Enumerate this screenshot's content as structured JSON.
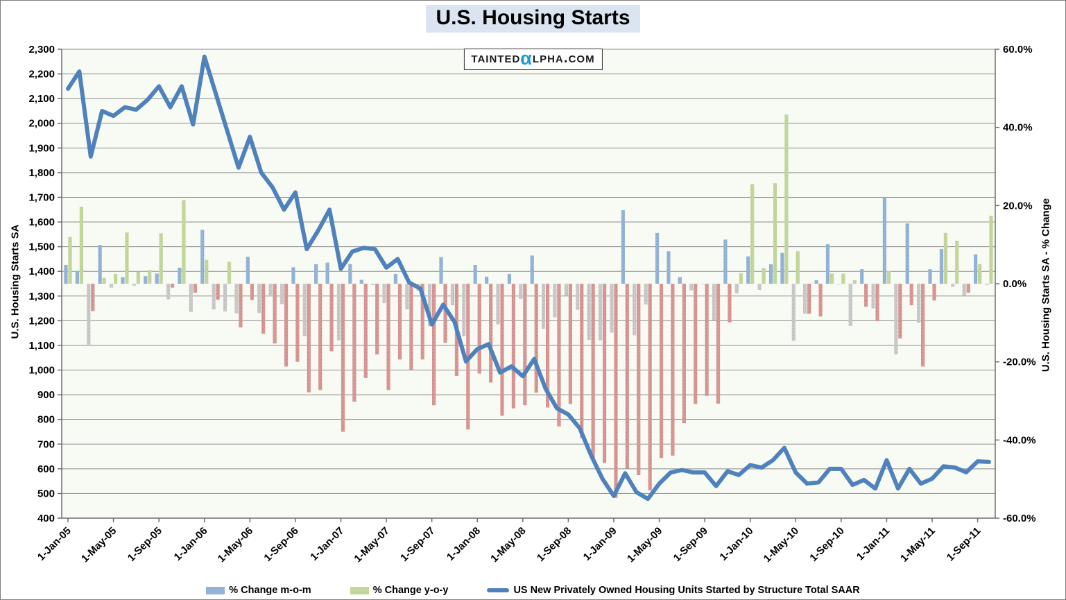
{
  "title": "U.S. Housing Starts",
  "logo": {
    "part1": "Tainted",
    "alpha": "α",
    "part2": "lpha.com"
  },
  "left_axis": {
    "title": "U.S. Housing Starts SA",
    "min": 400,
    "max": 2300,
    "tick_step": 100,
    "ticks": [
      "2,300",
      "2,200",
      "2,100",
      "2,000",
      "1,900",
      "1,800",
      "1,700",
      "1,600",
      "1,500",
      "1,400",
      "1,300",
      "1,200",
      "1,100",
      "1,000",
      "900",
      "800",
      "700",
      "600",
      "500",
      "400"
    ]
  },
  "right_axis": {
    "title": "U.S. Housing Starts SA - % Change",
    "min": -60,
    "max": 60,
    "tick_step": 20,
    "ticks": [
      "60.0%",
      "40.0%",
      "20.0%",
      "0.0%",
      "-20.0%",
      "-40.0%",
      "-60.0%"
    ]
  },
  "x_axis": {
    "tick_labels": [
      "1-Jan-05",
      "1-May-05",
      "1-Sep-05",
      "1-Jan-06",
      "1-May-06",
      "1-Sep-06",
      "1-Jan-07",
      "1-May-07",
      "1-Sep-07",
      "1-Jan-08",
      "1-May-08",
      "1-Sep-08",
      "1-Jan-09",
      "1-May-09",
      "1-Sep-09",
      "1-Jan-10",
      "1-May-10",
      "1-Sep-10",
      "1-Jan-11",
      "1-May-11",
      "1-Sep-11"
    ],
    "tick_every_months": 4
  },
  "legend": [
    {
      "label": "% Change m-o-m",
      "type": "bar",
      "color": "#95B3D7"
    },
    {
      "label": "% Change y-o-y",
      "type": "bar",
      "color": "#C3D69B"
    },
    {
      "label": "US New Privately Owned Housing Units Started by Structure Total SAAR",
      "type": "line",
      "color": "#4F81BD"
    }
  ],
  "colors": {
    "line": "#4F81BD",
    "mom_pos": "#95B3D7",
    "mom_pos_dot": "#7E9FC8",
    "mom_neg": "#C9C9C9",
    "mom_neg_dot": "#B1B1B1",
    "yoy_pos": "#C3D69B",
    "yoy_pos_dot": "#B2C987",
    "yoy_neg": "#D99694",
    "yoy_neg_dot": "#C07E7C",
    "grid": "#8C8C8C",
    "axis": "#6E6E6E",
    "plot_bg": "#F7FBF3",
    "title_bg": "#DBE5F1",
    "alpha_blue": "#1B9AD7"
  },
  "chart_data": {
    "type": "combo-bar-line",
    "title": "U.S. Housing Starts",
    "xlabel": "",
    "left_ylabel": "U.S. Housing Starts SA",
    "right_ylabel": "U.S. Housing Starts SA - % Change",
    "left_ylim": [
      400,
      2300
    ],
    "right_ylim": [
      -60,
      60
    ],
    "grid": "horizontal",
    "legend_position": "bottom",
    "months": [
      "Jan-05",
      "Feb-05",
      "Mar-05",
      "Apr-05",
      "May-05",
      "Jun-05",
      "Jul-05",
      "Aug-05",
      "Sep-05",
      "Oct-05",
      "Nov-05",
      "Dec-05",
      "Jan-06",
      "Feb-06",
      "Mar-06",
      "Apr-06",
      "May-06",
      "Jun-06",
      "Jul-06",
      "Aug-06",
      "Sep-06",
      "Oct-06",
      "Nov-06",
      "Dec-06",
      "Jan-07",
      "Feb-07",
      "Mar-07",
      "Apr-07",
      "May-07",
      "Jun-07",
      "Jul-07",
      "Aug-07",
      "Sep-07",
      "Oct-07",
      "Nov-07",
      "Dec-07",
      "Jan-08",
      "Feb-08",
      "Mar-08",
      "Apr-08",
      "May-08",
      "Jun-08",
      "Jul-08",
      "Aug-08",
      "Sep-08",
      "Oct-08",
      "Nov-08",
      "Dec-08",
      "Jan-09",
      "Feb-09",
      "Mar-09",
      "Apr-09",
      "May-09",
      "Jun-09",
      "Jul-09",
      "Aug-09",
      "Sep-09",
      "Oct-09",
      "Nov-09",
      "Dec-09",
      "Jan-10",
      "Feb-10",
      "Mar-10",
      "Apr-10",
      "May-10",
      "Jun-10",
      "Jul-10",
      "Aug-10",
      "Sep-10",
      "Oct-10",
      "Nov-10",
      "Dec-10",
      "Jan-11",
      "Feb-11",
      "Mar-11",
      "Apr-11",
      "May-11",
      "Jun-11",
      "Jul-11",
      "Aug-11",
      "Sep-11",
      "Oct-11"
    ],
    "series": [
      {
        "name": "% Change m-o-m",
        "type": "bar",
        "axis": "right",
        "unit": "%",
        "values": [
          4.8,
          3.3,
          -15.6,
          9.9,
          -1.0,
          1.7,
          -0.5,
          1.9,
          2.6,
          -4.0,
          4.1,
          -7.2,
          13.8,
          -6.6,
          -7.1,
          -7.6,
          6.9,
          -7.5,
          -3.3,
          -5.2,
          4.2,
          -13.4,
          5.0,
          5.4,
          -14.5,
          5.0,
          1.0,
          -0.3,
          -5.0,
          2.5,
          -6.6,
          -1.8,
          -10.9,
          6.8,
          -5.5,
          -13.4,
          4.8,
          1.8,
          -10.4,
          2.5,
          -3.9,
          7.2,
          -11.5,
          -8.6,
          -3.0,
          -6.7,
          -14.4,
          -14.5,
          -12.5,
          18.8,
          -13.2,
          -5.3,
          13.0,
          8.3,
          1.7,
          -1.7,
          0.0,
          -9.4,
          11.3,
          -2.5,
          7.0,
          -1.6,
          5.0,
          7.9,
          -14.6,
          -7.7,
          0.9,
          10.1,
          0.0,
          -10.8,
          3.7,
          -6.3,
          22.1,
          -18.1,
          15.4,
          -10.0,
          3.7,
          8.9,
          -0.8,
          -3.1,
          7.5,
          -0.3
        ]
      },
      {
        "name": "% Change y-o-y",
        "type": "bar",
        "axis": "right",
        "unit": "%",
        "values": [
          12.0,
          19.7,
          -7.0,
          1.5,
          2.5,
          13.1,
          3.1,
          3.5,
          12.9,
          -1.0,
          21.4,
          -2.3,
          6.1,
          -4.1,
          5.6,
          -11.2,
          -4.2,
          -12.8,
          -15.3,
          -21.2,
          -20.0,
          -27.8,
          -27.2,
          -17.3,
          -37.9,
          -30.2,
          -24.1,
          -18.1,
          -27.2,
          -19.4,
          -22.1,
          -19.4,
          -31.1,
          -15.1,
          -23.6,
          -37.3,
          -23.0,
          -25.3,
          -33.8,
          -31.9,
          -31.1,
          -27.9,
          -31.7,
          -36.5,
          -30.8,
          -39.5,
          -45.2,
          -45.9,
          -54.8,
          -47.3,
          -49.0,
          -52.9,
          -44.6,
          -44.0,
          -35.7,
          -30.8,
          -28.7,
          -30.7,
          -9.9,
          2.7,
          25.5,
          4.0,
          25.7,
          43.3,
          8.3,
          -7.7,
          -8.4,
          2.6,
          2.6,
          0.9,
          -5.9,
          -9.6,
          3.3,
          -14.0,
          -5.5,
          -21.2,
          -4.3,
          13.0,
          11.0,
          -2.3,
          5.0,
          17.4
        ]
      },
      {
        "name": "US New Privately Owned Housing Units Started by Structure Total SAAR",
        "type": "line",
        "axis": "left",
        "unit": "thousands SAAR",
        "values": [
          2140,
          2210,
          1865,
          2050,
          2030,
          2065,
          2055,
          2095,
          2150,
          2065,
          2150,
          1995,
          2270,
          2120,
          1970,
          1820,
          1945,
          1800,
          1740,
          1650,
          1720,
          1490,
          1565,
          1650,
          1410,
          1480,
          1495,
          1490,
          1415,
          1450,
          1355,
          1330,
          1185,
          1265,
          1195,
          1035,
          1085,
          1105,
          990,
          1015,
          975,
          1045,
          925,
          845,
          820,
          765,
          655,
          560,
          490,
          582,
          505,
          478,
          540,
          585,
          595,
          585,
          585,
          530,
          590,
          575,
          615,
          605,
          635,
          685,
          585,
          540,
          545,
          600,
          600,
          535,
          555,
          520,
          635,
          520,
          600,
          540,
          560,
          610,
          605,
          586,
          630,
          628
        ]
      }
    ]
  }
}
